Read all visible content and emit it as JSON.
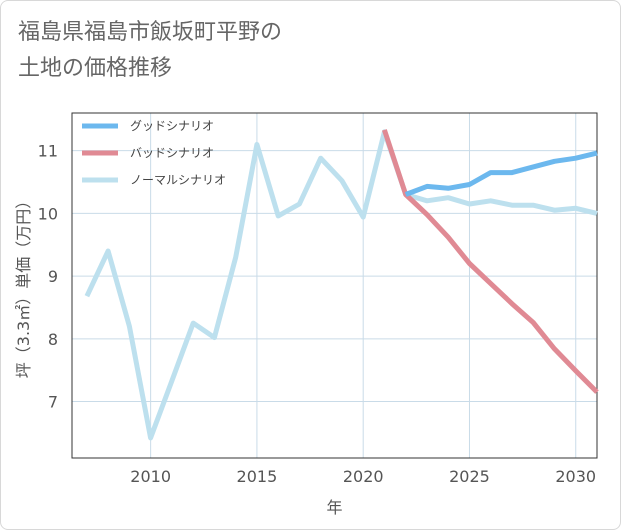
{
  "title_lines": [
    "福島県福島市飯坂町平野の",
    "土地の価格推移"
  ],
  "chart_data": {
    "type": "line",
    "title": "福島県福島市飯坂町平野の土地の価格推移",
    "xlabel": "年",
    "ylabel": "坪（3.3㎡）単価（万円）",
    "xlim": [
      2006.3,
      2031
    ],
    "ylim": [
      6.1,
      11.6
    ],
    "x_ticks": [
      2010,
      2015,
      2020,
      2025,
      2030
    ],
    "y_ticks": [
      7,
      8,
      9,
      10,
      11
    ],
    "grid": true,
    "legend_position": "top-left",
    "series": [
      {
        "name": "グッドシナリオ",
        "color": "#6cb8ee",
        "x": [
          2022,
          2023,
          2024,
          2025,
          2026,
          2027,
          2028,
          2029,
          2030,
          2031
        ],
        "y": [
          10.3,
          10.43,
          10.4,
          10.46,
          10.65,
          10.65,
          10.74,
          10.83,
          10.88,
          10.96
        ]
      },
      {
        "name": "バッドシナリオ",
        "color": "#e08a94",
        "x": [
          2021,
          2022,
          2023,
          2024,
          2025,
          2026,
          2027,
          2028,
          2029,
          2030,
          2031
        ],
        "y": [
          11.33,
          10.3,
          9.98,
          9.62,
          9.2,
          8.88,
          8.56,
          8.26,
          7.84,
          7.49,
          7.15
        ]
      },
      {
        "name": "ノーマルシナリオ",
        "color": "#bde0ee",
        "x": [
          2007,
          2008,
          2009,
          2010,
          2011,
          2012,
          2013,
          2014,
          2015,
          2016,
          2017,
          2018,
          2019,
          2020,
          2021,
          2022,
          2023,
          2024,
          2025,
          2026,
          2027,
          2028,
          2029,
          2030,
          2031
        ],
        "y": [
          8.68,
          9.4,
          8.2,
          6.42,
          7.33,
          8.25,
          8.02,
          9.3,
          11.1,
          9.96,
          10.15,
          10.88,
          10.52,
          9.94,
          11.3,
          10.3,
          10.2,
          10.25,
          10.15,
          10.2,
          10.13,
          10.13,
          10.05,
          10.08,
          10.0
        ]
      }
    ]
  }
}
